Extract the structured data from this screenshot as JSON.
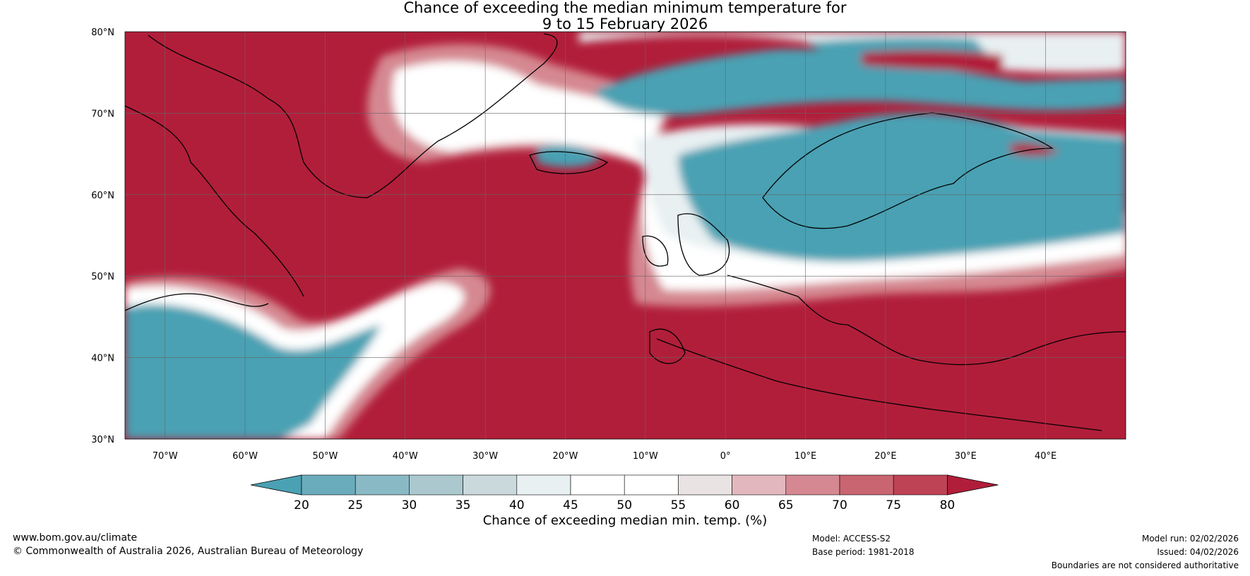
{
  "title": {
    "line1": "Chance of exceeding the median minimum temperature for",
    "line2": "9 to 15 February 2026"
  },
  "map": {
    "lat_labels": [
      "80°N",
      "70°N",
      "60°N",
      "50°N",
      "40°N",
      "30°N"
    ],
    "lon_labels": [
      "70°W",
      "60°W",
      "50°W",
      "40°W",
      "30°W",
      "20°W",
      "10°W",
      "0°",
      "10°E",
      "20°E",
      "30°E",
      "40°E"
    ],
    "lat_range": [
      30,
      80
    ],
    "lon_range": [
      -75,
      50
    ]
  },
  "colorbar": {
    "ticks": [
      "20",
      "25",
      "30",
      "35",
      "40",
      "45",
      "50",
      "55",
      "60",
      "65",
      "70",
      "75",
      "80"
    ],
    "colors": [
      "#4aa1b3",
      "#6aacbc",
      "#8ab9c6",
      "#aac8ce",
      "#cad9dc",
      "#e8f0f2",
      "#ffffff",
      "#ffffff",
      "#e9e3e4",
      "#e2b8be",
      "#d58891",
      "#c96571",
      "#be4355",
      "#b11e3a"
    ],
    "label": "Chance of exceeding median min. temp. (%)"
  },
  "footer": {
    "url": "www.bom.gov.au/climate",
    "copyright": "© Commonwealth of Australia 2026, Australian Bureau of Meteorology",
    "model": "Model: ACCESS-S2",
    "base_period": "Base period: 1981-2018",
    "model_run": "Model run: 02/02/2026",
    "issued": "Issued: 04/02/2026",
    "disclaimer": "Boundaries are not considered authoritative"
  }
}
